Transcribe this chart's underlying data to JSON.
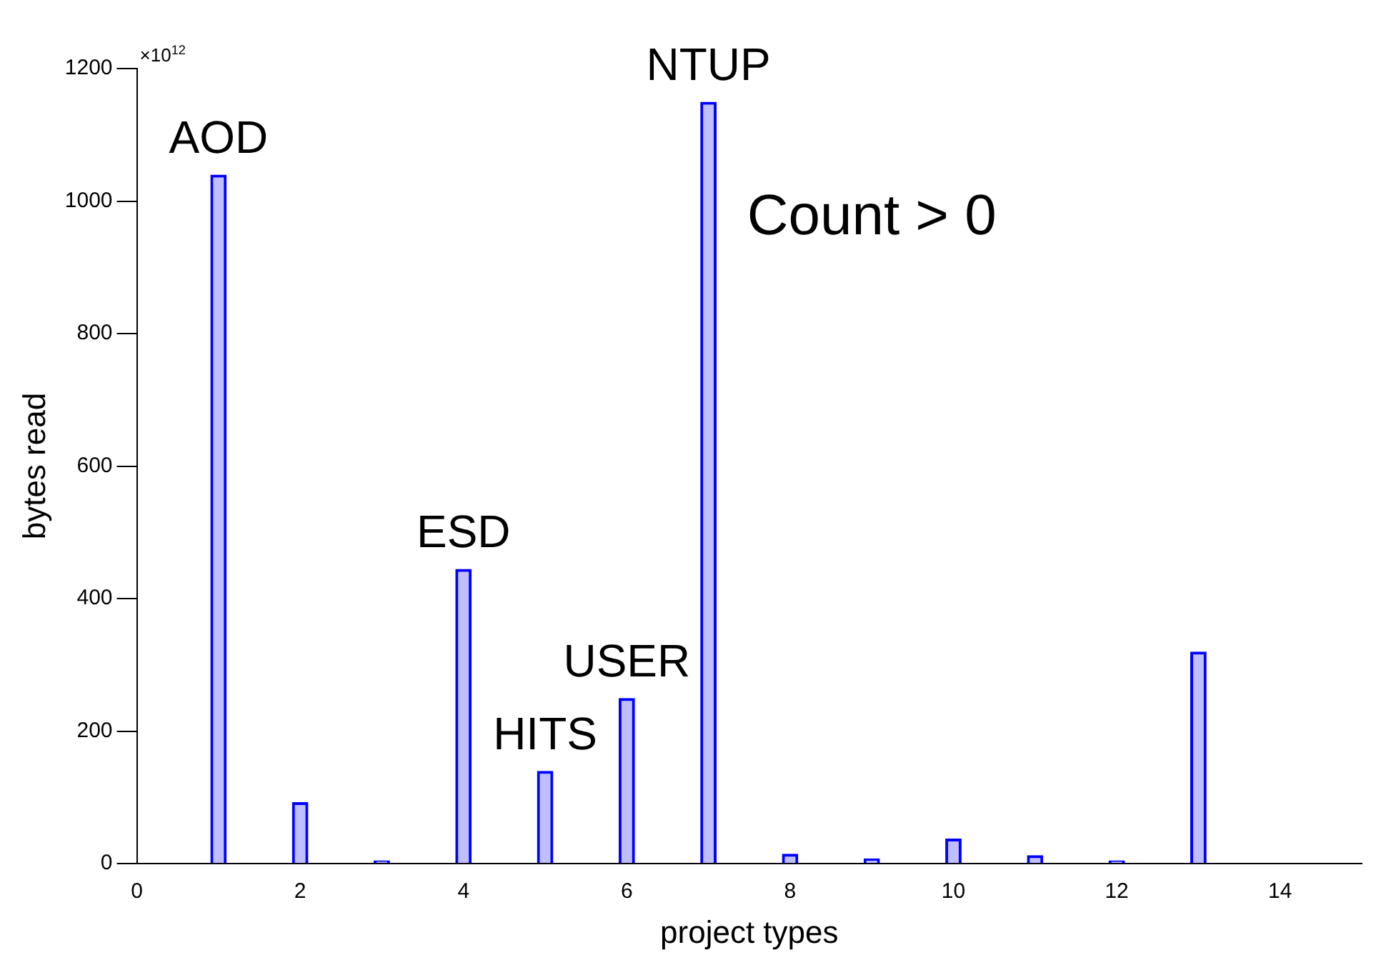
{
  "chart_data": {
    "type": "bar",
    "xlabel": "project types",
    "ylabel": "bytes read",
    "x": [
      1,
      2,
      3,
      4,
      5,
      6,
      7,
      8,
      9,
      10,
      11,
      12,
      13
    ],
    "values": [
      1040,
      93,
      5,
      445,
      140,
      250,
      1150,
      15,
      8,
      38,
      13,
      5,
      320
    ],
    "color": "#0000ff",
    "xlim": [
      0,
      15
    ],
    "xticks": [
      0,
      2,
      4,
      6,
      8,
      10,
      12,
      14
    ],
    "ylim": [
      0,
      1200
    ],
    "yticks": [
      0,
      200,
      400,
      600,
      800,
      1000,
      1200
    ],
    "grid": false,
    "annotations": [
      "×10$^{12}$",
      "Count > 0",
      {
        "text": "AOD",
        "x": 1,
        "y": 1040
      },
      {
        "text": "ESD",
        "x": 4,
        "y": 445
      },
      {
        "text": "HITS",
        "x": 5,
        "y": 140
      },
      {
        "text": "USER",
        "x": 6,
        "y": 250
      },
      {
        "text": "NTUP",
        "x": 7,
        "y": 1150
      }
    ]
  }
}
